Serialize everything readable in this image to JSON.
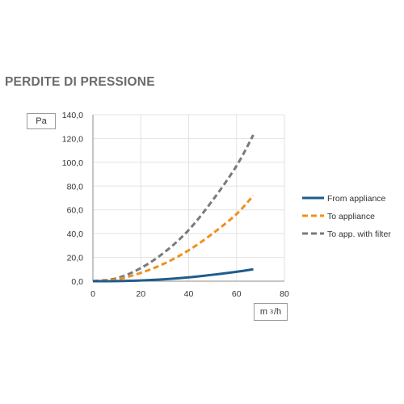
{
  "title": "PERDITE DI PRESSIONE",
  "chart_data": {
    "type": "line",
    "ylabel": "Pa",
    "xlabel_base": "m",
    "xlabel_sup": "3",
    "xlabel_tail": "/h",
    "xlim": [
      0,
      80
    ],
    "ylim": [
      0,
      140
    ],
    "x_ticks": [
      "0",
      "20",
      "40",
      "60",
      "80"
    ],
    "x_tick_values": [
      0,
      20,
      40,
      60,
      80
    ],
    "y_ticks": [
      "0,0",
      "20,0",
      "40,0",
      "60,0",
      "80,0",
      "100,0",
      "120,0",
      "140,0"
    ],
    "y_tick_values": [
      0,
      20,
      40,
      60,
      80,
      100,
      120,
      140
    ],
    "grid": true,
    "legend_position": "right",
    "series": [
      {
        "name": "From appliance",
        "color": "#1f5c8c",
        "style": "solid",
        "x": [
          0,
          10,
          20,
          30,
          40,
          50,
          60,
          67
        ],
        "y": [
          0,
          0.1,
          0.6,
          1.6,
          3.2,
          5.4,
          7.9,
          10.0
        ]
      },
      {
        "name": "To appliance",
        "color": "#f0901e",
        "style": "dashed",
        "x": [
          0,
          10,
          20,
          30,
          40,
          50,
          60,
          67
        ],
        "y": [
          0,
          1.5,
          7.0,
          15.0,
          26.0,
          40.0,
          56.5,
          72.0
        ]
      },
      {
        "name": "To app. with filter",
        "color": "#7a7a7a",
        "style": "dashed",
        "x": [
          0,
          10,
          20,
          30,
          40,
          50,
          60,
          67
        ],
        "y": [
          0,
          2.5,
          11.0,
          24.5,
          43.0,
          68.0,
          97.0,
          123.0
        ]
      }
    ]
  }
}
